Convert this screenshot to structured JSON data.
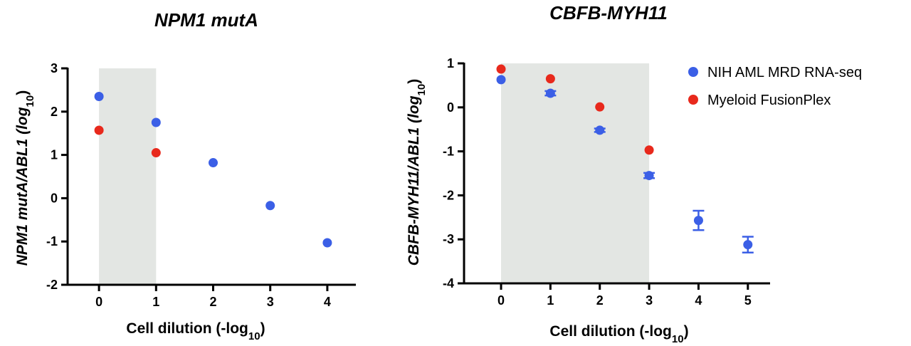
{
  "colors": {
    "series_blue": "#3b5fe6",
    "series_red": "#e8291c",
    "shade": "#e3e6e3",
    "axis": "#000000"
  },
  "chart_data": [
    {
      "type": "scatter",
      "title": "NPM1 mutA",
      "xlabel": "Cell dilution (-log10)",
      "xlabel_main": "Cell dilution (-log",
      "xlabel_sub": "10",
      "xlabel_close": ")",
      "ylabel": "NPM1 mutA/ABL1 (log10)",
      "ylabel_main": "NPM1 mutA/ABL1 (log",
      "ylabel_sub": "10",
      "ylabel_close": ")",
      "xlim": [
        -0.55,
        4.5
      ],
      "ylim": [
        -2,
        3
      ],
      "xticks": [
        0,
        1,
        2,
        3,
        4
      ],
      "yticks": [
        3,
        2,
        1,
        0,
        -1,
        -2
      ],
      "shaded_x": [
        0,
        1
      ],
      "series": [
        {
          "name": "NIH AML MRD RNA-seq",
          "color": "#3b5fe6",
          "points": [
            {
              "x": 0,
              "y": 2.35
            },
            {
              "x": 1,
              "y": 1.75
            },
            {
              "x": 2,
              "y": 0.82
            },
            {
              "x": 3,
              "y": -0.17
            },
            {
              "x": 4,
              "y": -1.03
            }
          ]
        },
        {
          "name": "Myeloid FusionPlex",
          "color": "#e8291c",
          "points": [
            {
              "x": 0,
              "y": 1.57
            },
            {
              "x": 1,
              "y": 1.05
            }
          ]
        }
      ]
    },
    {
      "type": "scatter",
      "title": "CBFB-MYH11",
      "xlabel": "Cell dilution (-log10)",
      "xlabel_main": "Cell dilution (-log",
      "xlabel_sub": "10",
      "xlabel_close": ")",
      "ylabel": "CBFB-MYH11/ABL1 (log10)",
      "ylabel_main": "CBFB-MYH11/ABL1 (log",
      "ylabel_sub": "10",
      "ylabel_close": ")",
      "xlim": [
        -0.75,
        5.45
      ],
      "ylim": [
        -4,
        1
      ],
      "xticks": [
        0,
        1,
        2,
        3,
        4,
        5
      ],
      "yticks": [
        1,
        0,
        -1,
        -2,
        -3,
        -4
      ],
      "shaded_x": [
        0,
        3
      ],
      "legend_position": "top-right",
      "series": [
        {
          "name": "NIH AML MRD RNA-seq",
          "color": "#3b5fe6",
          "points": [
            {
              "x": 0,
              "y": 0.63
            },
            {
              "x": 1,
              "y": 0.32,
              "err": 0.05
            },
            {
              "x": 2,
              "y": -0.52,
              "err": 0.04
            },
            {
              "x": 3,
              "y": -1.55,
              "err": 0.06
            },
            {
              "x": 4,
              "y": -2.57,
              "err": 0.22
            },
            {
              "x": 5,
              "y": -3.12,
              "err": 0.18
            }
          ]
        },
        {
          "name": "Myeloid FusionPlex",
          "color": "#e8291c",
          "points": [
            {
              "x": 0,
              "y": 0.87
            },
            {
              "x": 1,
              "y": 0.65
            },
            {
              "x": 2,
              "y": 0.01
            },
            {
              "x": 3,
              "y": -0.97
            }
          ]
        }
      ]
    }
  ]
}
